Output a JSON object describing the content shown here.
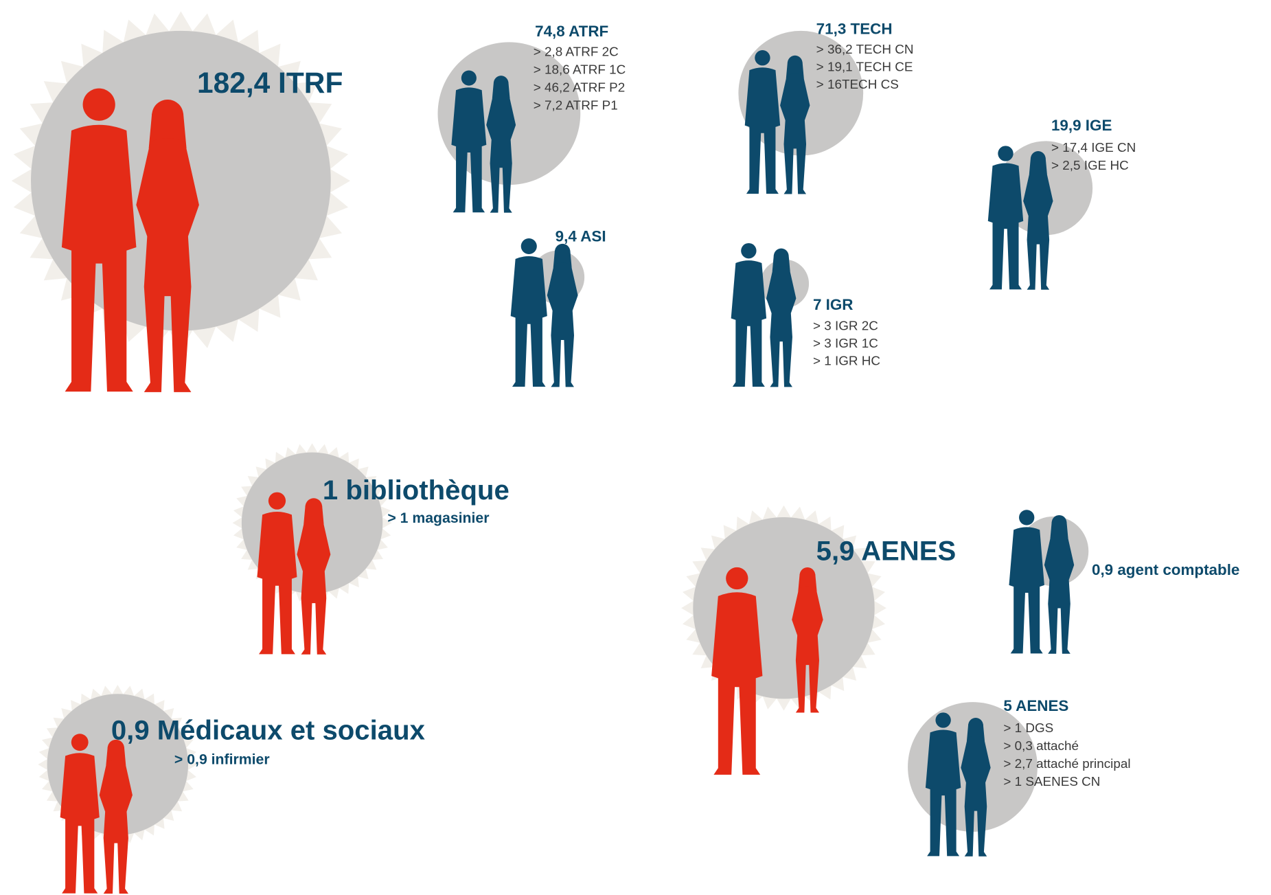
{
  "groups": [
    {
      "title": "182,4 ITRF"
    },
    {
      "title": "74,8 ATRF",
      "items": [
        "> 2,8 ATRF 2C",
        "> 18,6 ATRF 1C",
        "> 46,2 ATRF P2",
        "> 7,2 ATRF P1"
      ]
    },
    {
      "title": "71,3 TECH",
      "items": [
        "> 36,2 TECH CN",
        "> 19,1 TECH CE",
        "> 16TECH CS"
      ]
    },
    {
      "title": "19,9 IGE",
      "items": [
        "> 17,4 IGE CN",
        "> 2,5 IGE HC"
      ]
    },
    {
      "title": "9,4 ASI"
    },
    {
      "title": "7 IGR",
      "items": [
        "> 3 IGR 2C",
        "> 3 IGR 1C",
        "> 1 IGR HC"
      ]
    },
    {
      "title": "1 bibliothèque",
      "items": [
        "> 1 magasinier"
      ]
    },
    {
      "title": "5,9 AENES"
    },
    {
      "title": "0,9 agent comptable"
    },
    {
      "title": "5 AENES",
      "items": [
        "> 1 DGS",
        "> 0,3 attaché",
        "> 2,7 attaché principal",
        "> 1 SAENES CN"
      ]
    },
    {
      "title": "0,9 Médicaux et sociaux",
      "items": [
        "> 0,9 infirmier"
      ]
    }
  ]
}
